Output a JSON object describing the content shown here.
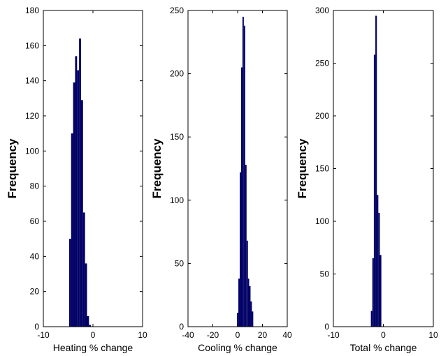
{
  "colors": {
    "bar": "#000066",
    "axis": "#000000",
    "background": "#ffffff"
  },
  "chart_data": [
    {
      "type": "bar",
      "xlabel": "Heating % change",
      "ylabel": "Frequency",
      "xlim": [
        -10,
        10
      ],
      "ylim": [
        0,
        180
      ],
      "xticks": [
        -10,
        0,
        10
      ],
      "yticks": [
        0,
        20,
        40,
        60,
        80,
        100,
        120,
        140,
        160,
        180
      ],
      "bin_edges": [
        -4.8,
        -4.4,
        -4.0,
        -3.6,
        -3.2,
        -2.8,
        -2.4,
        -2.0,
        -1.6,
        -1.2,
        -0.8,
        -0.4
      ],
      "values": [
        50,
        110,
        139,
        154,
        146,
        164,
        129,
        65,
        36,
        6,
        1
      ]
    },
    {
      "type": "bar",
      "xlabel": "Cooling % change",
      "ylabel": "Frequency",
      "xlim": [
        -40,
        40
      ],
      "ylim": [
        0,
        250
      ],
      "xticks": [
        -40,
        -20,
        0,
        20,
        40
      ],
      "yticks": [
        0,
        50,
        100,
        150,
        200,
        250
      ],
      "bin_edges": [
        -0.5,
        0.6,
        1.7,
        2.8,
        3.9,
        5.0,
        6.1,
        7.2,
        8.3,
        9.3,
        10.4,
        11.5,
        12.6
      ],
      "values": [
        11,
        38,
        122,
        205,
        245,
        238,
        128,
        68,
        38,
        32,
        20,
        12
      ]
    },
    {
      "type": "bar",
      "xlabel": "Total % change",
      "ylabel": "Frequency",
      "xlim": [
        -10,
        10
      ],
      "ylim": [
        0,
        300
      ],
      "xticks": [
        -10,
        0,
        10
      ],
      "yticks": [
        0,
        50,
        100,
        150,
        200,
        250,
        300
      ],
      "bin_edges": [
        -2.5,
        -2.2,
        -1.9,
        -1.6,
        -1.3,
        -1.0,
        -0.7,
        -0.4
      ],
      "values": [
        15,
        65,
        258,
        295,
        125,
        108,
        68
      ]
    }
  ]
}
